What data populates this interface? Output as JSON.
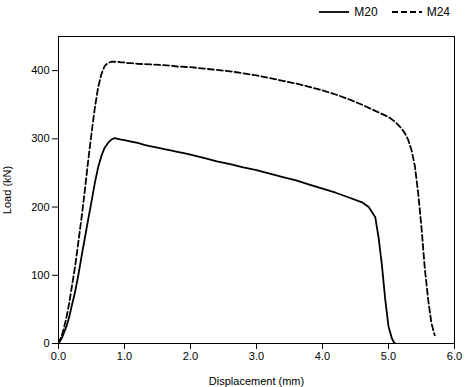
{
  "chart_data": {
    "type": "line",
    "xlabel": "Displacement (mm)",
    "ylabel": "Load (kN)",
    "xlim": [
      0,
      6
    ],
    "ylim": [
      0,
      450
    ],
    "xticks": [
      0,
      1,
      2,
      3,
      4,
      5,
      6
    ],
    "yticks": [
      0,
      100,
      200,
      300,
      400
    ],
    "grid": false,
    "legend": "upper right",
    "series": [
      {
        "name": "M20",
        "color": "#000000",
        "line_style": "solid",
        "x": [
          0,
          0.02,
          0.05,
          0.08,
          0.12,
          0.16,
          0.2,
          0.25,
          0.3,
          0.35,
          0.4,
          0.45,
          0.5,
          0.55,
          0.6,
          0.65,
          0.7,
          0.75,
          0.8,
          0.85,
          0.9,
          0.95,
          1.0,
          1.05,
          1.1,
          1.2,
          1.3,
          1.4,
          1.5,
          1.6,
          1.7,
          1.8,
          1.9,
          2.0,
          2.2,
          2.4,
          2.6,
          2.8,
          3.0,
          3.2,
          3.4,
          3.6,
          3.8,
          4.0,
          4.2,
          4.4,
          4.6,
          4.7,
          4.8,
          4.85,
          4.9,
          4.95,
          5.0,
          5.05,
          5.08,
          5.1
        ],
        "values": [
          0,
          3,
          8,
          15,
          25,
          38,
          55,
          75,
          100,
          128,
          155,
          182,
          208,
          235,
          258,
          275,
          287,
          294,
          299,
          301,
          300,
          299,
          298,
          297,
          296,
          294,
          291,
          289,
          287,
          285,
          283,
          281,
          279,
          277,
          272,
          267,
          263,
          258,
          254,
          249,
          244,
          239,
          233,
          227,
          221,
          214,
          207,
          200,
          185,
          155,
          115,
          65,
          25,
          8,
          2,
          0
        ]
      },
      {
        "name": "M24",
        "color": "#000000",
        "line_style": "dashed",
        "x": [
          0,
          0.02,
          0.05,
          0.08,
          0.12,
          0.16,
          0.2,
          0.25,
          0.3,
          0.35,
          0.4,
          0.45,
          0.5,
          0.55,
          0.6,
          0.65,
          0.7,
          0.75,
          0.8,
          0.85,
          0.9,
          0.95,
          1.0,
          1.05,
          1.1,
          1.2,
          1.4,
          1.6,
          1.8,
          2.0,
          2.2,
          2.4,
          2.6,
          2.8,
          3.0,
          3.2,
          3.4,
          3.6,
          3.8,
          4.0,
          4.2,
          4.4,
          4.6,
          4.8,
          5.0,
          5.1,
          5.2,
          5.25,
          5.3,
          5.35,
          5.4,
          5.45,
          5.5,
          5.55,
          5.6,
          5.65,
          5.7
        ],
        "values": [
          0,
          5,
          12,
          22,
          38,
          58,
          82,
          112,
          148,
          185,
          225,
          268,
          308,
          345,
          375,
          395,
          407,
          411,
          413,
          413,
          413,
          412,
          412,
          411,
          411,
          410,
          409,
          408,
          406,
          405,
          403,
          401,
          399,
          396,
          393,
          389,
          385,
          381,
          376,
          371,
          365,
          358,
          350,
          341,
          332,
          325,
          315,
          308,
          298,
          283,
          260,
          220,
          170,
          110,
          65,
          30,
          12
        ]
      }
    ]
  }
}
